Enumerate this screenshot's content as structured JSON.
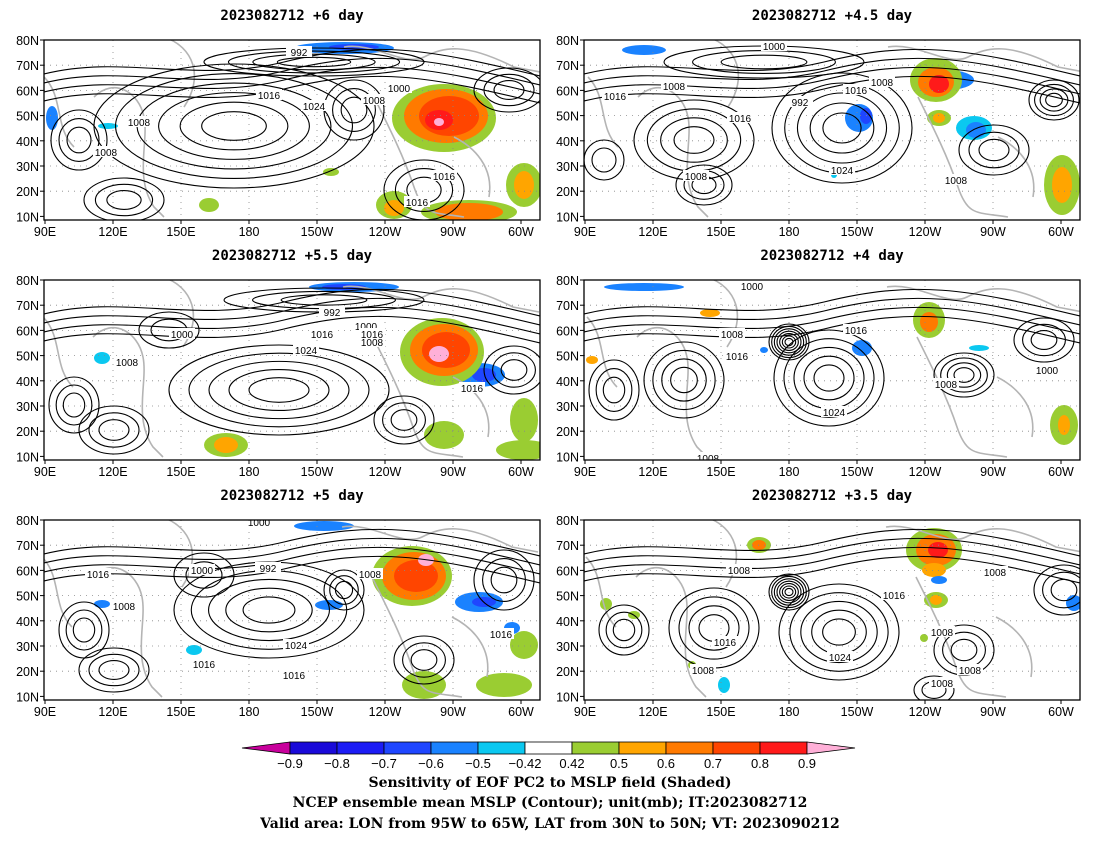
{
  "panels": [
    {
      "title": "2023082712 +6 day",
      "contour_labels": [
        "992",
        "1000",
        "1008",
        "1016",
        "1024",
        "1008",
        "1008",
        "1016",
        "1016"
      ]
    },
    {
      "title": "2023082712 +4.5 day",
      "contour_labels": [
        "1000",
        "1016",
        "1008",
        "992",
        "1016",
        "1016",
        "1008",
        "1024",
        "1008",
        "1008"
      ]
    },
    {
      "title": "2023082712 +5.5 day",
      "contour_labels": [
        "992",
        "1000",
        "1008",
        "1016",
        "1000",
        "1008",
        "1024",
        "1016",
        "1016"
      ]
    },
    {
      "title": "2023082712 +4 day",
      "contour_labels": [
        "1000",
        "1008",
        "1016",
        "1016",
        "1008",
        "1024",
        "1000",
        "1008"
      ]
    },
    {
      "title": "2023082712 +5 day",
      "contour_labels": [
        "1000",
        "992",
        "1000",
        "1016",
        "1008",
        "1008",
        "1024",
        "1016",
        "1016",
        "1016"
      ]
    },
    {
      "title": "2023082712 +3.5 day",
      "contour_labels": [
        "1008",
        "1008",
        "1016",
        "1016",
        "1024",
        "1008",
        "1008",
        "1008",
        "1008"
      ]
    }
  ],
  "axes": {
    "lon_ticks": [
      "90E",
      "120E",
      "150E",
      "180",
      "150W",
      "120W",
      "90W",
      "60W"
    ],
    "lat_ticks": [
      "80N",
      "70N",
      "60N",
      "50N",
      "40N",
      "30N",
      "20N",
      "10N"
    ]
  },
  "colorbar": {
    "ticks": [
      "−0.9",
      "−0.8",
      "−0.7",
      "−0.6",
      "−0.5",
      "−0.42",
      "0.42",
      "0.5",
      "0.6",
      "0.7",
      "0.8",
      "0.9"
    ],
    "colors": [
      "#c8009c",
      "#1a0ad9",
      "#1c1cf5",
      "#1f46ff",
      "#1a82ff",
      "#0bc8f0",
      "#ffffff",
      "#9acd32",
      "#ffa500",
      "#ff7a00",
      "#ff4500",
      "#ff1a1a",
      "#ffb0d8"
    ]
  },
  "caption": {
    "line1": "Sensitivity of EOF PC2 to MSLP field (Shaded)",
    "line2": "NCEP ensemble mean MSLP (Contour); unit(mb); IT:2023082712",
    "line3": "Valid area: LON from 95W to 65W, LAT from 30N to 50N; VT: 2023090212"
  }
}
